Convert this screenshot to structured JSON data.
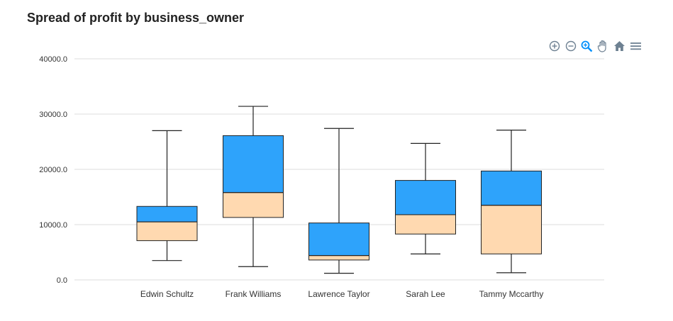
{
  "title": "Spread of profit by business_owner",
  "toolbar": {
    "icons": [
      "zoom-in-icon",
      "zoom-out-icon",
      "selection-zoom-icon",
      "pan-icon",
      "home-icon",
      "menu-icon"
    ]
  },
  "colors": {
    "upper_box": "#2ea3fb",
    "lower_box": "#ffd9b0",
    "stroke": "#222222",
    "grid": "#dddddd",
    "toolbar": "#6e8192",
    "toolbar_active": "#008ffb"
  },
  "chart_data": {
    "type": "boxplot",
    "title": "Spread of profit by business_owner",
    "xlabel": "",
    "ylabel": "",
    "ylim": [
      0,
      40000
    ],
    "yticks": [
      "0.0",
      "10000.0",
      "20000.0",
      "30000.0",
      "40000.0"
    ],
    "categories": [
      "Edwin Schultz",
      "Frank Williams",
      "Lawrence Taylor",
      "Sarah Lee",
      "Tammy Mccarthy"
    ],
    "series": [
      {
        "values": [
          {
            "min": 3500,
            "q1": 7100,
            "median": 10500,
            "q3": 13300,
            "max": 27000
          },
          {
            "min": 2400,
            "q1": 11300,
            "median": 15800,
            "q3": 26100,
            "max": 31400
          },
          {
            "min": 1200,
            "q1": 3600,
            "median": 4400,
            "q3": 10300,
            "max": 27400
          },
          {
            "min": 4700,
            "q1": 8300,
            "median": 11800,
            "q3": 18000,
            "max": 24700
          },
          {
            "min": 1300,
            "q1": 4700,
            "median": 13500,
            "q3": 19700,
            "max": 27100
          }
        ]
      }
    ],
    "grid": true,
    "legend": "none"
  }
}
